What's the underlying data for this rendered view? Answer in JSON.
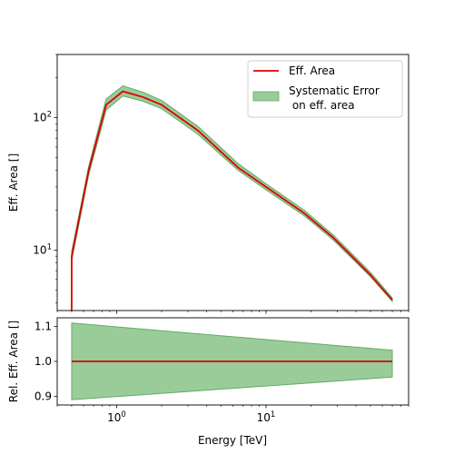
{
  "colors": {
    "line": "#dd0000",
    "band_fill": "#99cc99",
    "band_edge": "#66aa66",
    "axes": "#000000",
    "background": "#ffffff"
  },
  "chart_data": [
    {
      "type": "line",
      "title": "",
      "xlabel": "",
      "ylabel": "Eff. Area []",
      "xscale": "log",
      "yscale": "log",
      "xlim": [
        0.4,
        90
      ],
      "ylim": [
        3.5,
        300
      ],
      "grid": false,
      "x_ticks": [
        {
          "base": "10",
          "exp": "0",
          "value": 1
        },
        {
          "base": "10",
          "exp": "1",
          "value": 10
        }
      ],
      "y_ticks": [
        {
          "base": "10",
          "exp": "1",
          "value": 10
        },
        {
          "base": "10",
          "exp": "2",
          "value": 100
        }
      ],
      "legend": {
        "placement": "top-right",
        "entries": [
          {
            "label_lines": [
              "Eff. Area"
            ],
            "kind": "line"
          },
          {
            "label_lines": [
              "Systematic Error",
              " on eff. area"
            ],
            "kind": "band"
          }
        ]
      },
      "series": [
        {
          "name": "Eff. Area",
          "x": [
            0.5,
            0.5,
            0.65,
            0.85,
            1.1,
            1.5,
            2.0,
            3.5,
            6.5,
            10,
            18,
            28,
            50,
            70
          ],
          "y": [
            3.5,
            9,
            40,
            125,
            158,
            143,
            125,
            80,
            42,
            30,
            19,
            12.5,
            6.5,
            4.2
          ]
        },
        {
          "name": "Systematic Error\n on eff. area",
          "type": "area",
          "x": [
            0.5,
            0.5,
            0.65,
            0.85,
            1.1,
            1.5,
            2.0,
            3.5,
            6.5,
            10,
            18,
            28,
            50,
            70
          ],
          "y_low": [
            3.5,
            8.3,
            37,
            114,
            146,
            133,
            117,
            75,
            40,
            28.5,
            18.2,
            12.0,
            6.3,
            4.1
          ],
          "y_high": [
            3.5,
            9.8,
            43,
            138,
            174,
            156,
            135,
            86,
            45,
            31.7,
            20.0,
            13.1,
            6.8,
            4.35
          ]
        }
      ]
    },
    {
      "type": "line",
      "title": "",
      "xlabel": "Energy [TeV]",
      "ylabel": "Rel. Eff. Area []",
      "xscale": "log",
      "yscale": "linear",
      "xlim": [
        0.4,
        90
      ],
      "ylim": [
        0.875,
        1.125
      ],
      "grid": false,
      "x_ticks": [
        {
          "base": "10",
          "exp": "0",
          "value": 1
        },
        {
          "base": "10",
          "exp": "1",
          "value": 10
        }
      ],
      "y_ticks": [
        {
          "label": "0.9",
          "value": 0.9
        },
        {
          "label": "1.0",
          "value": 1.0
        },
        {
          "label": "1.1",
          "value": 1.1
        }
      ],
      "series": [
        {
          "name": "",
          "x": [
            0.5,
            70
          ],
          "y": [
            1.0,
            1.0
          ]
        },
        {
          "name": "",
          "type": "area",
          "x": [
            0.5,
            70
          ],
          "y_low": [
            0.89,
            0.955
          ],
          "y_high": [
            1.11,
            1.032
          ]
        }
      ]
    }
  ]
}
